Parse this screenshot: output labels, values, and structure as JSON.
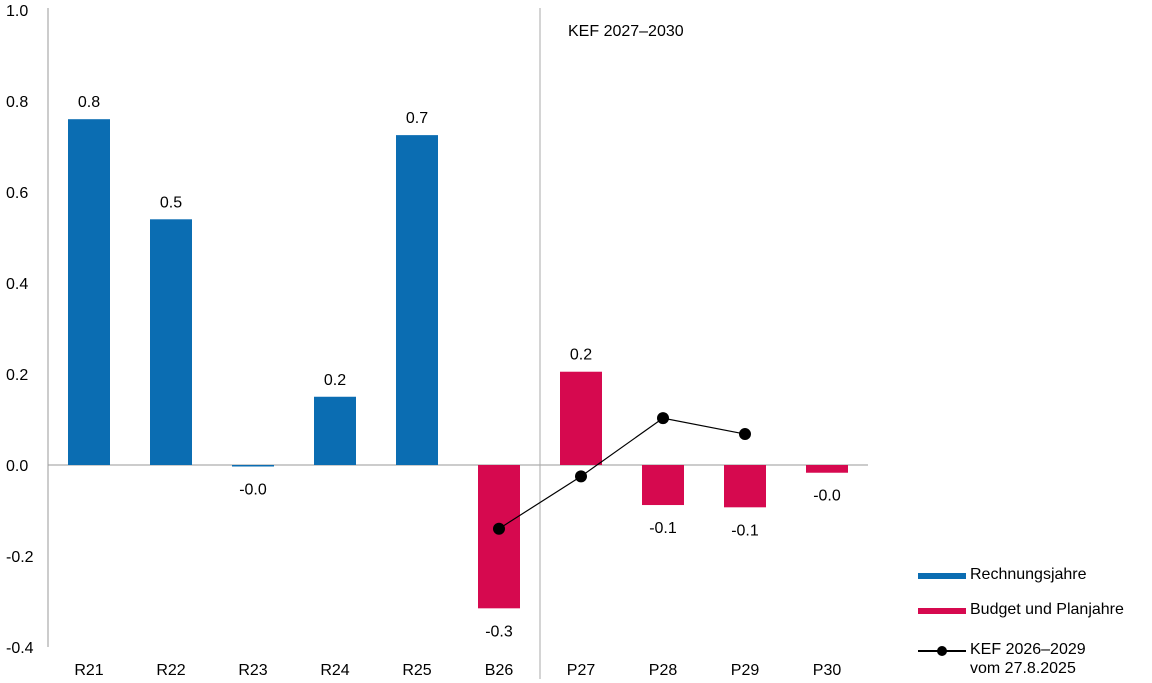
{
  "chart_data": {
    "type": "bar",
    "categories": [
      "R21",
      "R22",
      "R23",
      "R24",
      "R25",
      "B26",
      "P27",
      "P28",
      "P29",
      "P30"
    ],
    "values": [
      0.76,
      0.54,
      -0.003,
      0.15,
      0.725,
      -0.315,
      0.205,
      -0.088,
      -0.093,
      -0.017
    ],
    "bar_labels": [
      "0.8",
      "0.5",
      "-0.0",
      "0.2",
      "0.7",
      "-0.3",
      "0.2",
      "-0.1",
      "-0.1",
      "-0.0"
    ],
    "bar_groups": [
      "actual",
      "actual",
      "actual",
      "actual",
      "actual",
      "plan",
      "plan",
      "plan",
      "plan",
      "plan"
    ],
    "colors": {
      "actual": "#0b6db2",
      "plan": "#d6094f",
      "line": "#000000",
      "divider": "#aaaaaa",
      "axis": "#9a9a9a"
    },
    "line_series": {
      "categories": [
        "B26",
        "P27",
        "P28",
        "P29"
      ],
      "values": [
        -0.14,
        -0.025,
        0.103,
        0.068
      ]
    },
    "ylim": [
      -0.4,
      1.0
    ],
    "yticks": [
      "1.0",
      "0.8",
      "0.6",
      "0.4",
      "0.2",
      "0.0",
      "-0.2",
      "-0.4"
    ],
    "ytick_values": [
      1.0,
      0.8,
      0.6,
      0.4,
      0.2,
      0.0,
      -0.2,
      -0.4
    ],
    "divider_after": "B26",
    "annotation": "KEF 2027–2030",
    "legend": {
      "placement": "bottom-right",
      "items": [
        {
          "label": "Rechnungsjahre"
        },
        {
          "label": "Budget und Planjahre"
        },
        {
          "label": "KEF 2026–2029",
          "label2": "vom 27.8.2025"
        }
      ]
    },
    "grid": false
  }
}
